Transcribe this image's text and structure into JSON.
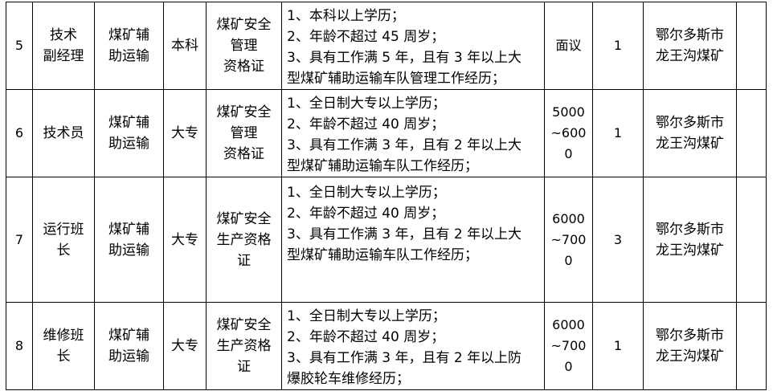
{
  "rows": [
    {
      "no": "5",
      "position": [
        "技术",
        "副经理"
      ],
      "dept": [
        "煤矿辅",
        "助运输"
      ],
      "edu": "本科",
      "cert": [
        "煤矿安全",
        "管理",
        "资格证"
      ],
      "req": [
        "1、本科以上学历；",
        "2、年龄不超过 45 周岁；",
        "3、具有工作满 5 年，且有 3 年以上大",
        "型煤矿辅助运输车队管理工作经历；"
      ],
      "salary": [
        "面议"
      ],
      "count": "1",
      "location": [
        "鄂尔多斯市",
        "龙王沟煤矿"
      ]
    },
    {
      "no": "6",
      "position": [
        "技术员"
      ],
      "dept": [
        "煤矿辅",
        "助运输"
      ],
      "edu": "大专",
      "cert": [
        "煤矿安全",
        "管理",
        "资格证"
      ],
      "req": [
        "1、全日制大专以上学历；",
        "2、年龄不超过 40 周岁；",
        "3、具有工作满 3 年，且有 2 年以上大",
        "型煤矿辅助运输车队工作经历；"
      ],
      "salary": [
        "5000",
        "~600",
        "0"
      ],
      "count": "1",
      "location": [
        "鄂尔多斯市",
        "龙王沟煤矿"
      ]
    },
    {
      "no": "7",
      "position": [
        "运行班",
        "长"
      ],
      "dept": [
        "煤矿辅",
        "助运输"
      ],
      "edu": "大专",
      "cert": [
        "煤矿安全",
        "生产资格",
        "证"
      ],
      "req": [
        "1、全日制大专以上学历；",
        "2、年龄不超过 40 周岁；",
        "3、具有工作满 3 年，且有 2 年以上大",
        "型煤矿辅助运输车队工作经历；"
      ],
      "salary": [
        "6000",
        "~700",
        "0"
      ],
      "count": "3",
      "location": [
        "鄂尔多斯市",
        "龙王沟煤矿"
      ]
    },
    {
      "no": "8",
      "position": [
        "维修班",
        "长"
      ],
      "dept": [
        "煤矿辅",
        "助运输"
      ],
      "edu": "大专",
      "cert": [
        "煤矿安全",
        "生产资格",
        "证"
      ],
      "req": [
        "1、全日制大专以上学历；",
        "2、年龄不超过 40 周岁；",
        "3、具有工作满 3 年，且有 2 年以上防",
        "爆胶轮车维修经历；"
      ],
      "salary": [
        "6000",
        "~700",
        "0"
      ],
      "count": "1",
      "location": [
        "鄂尔多斯市",
        "龙王沟煤矿"
      ]
    }
  ]
}
